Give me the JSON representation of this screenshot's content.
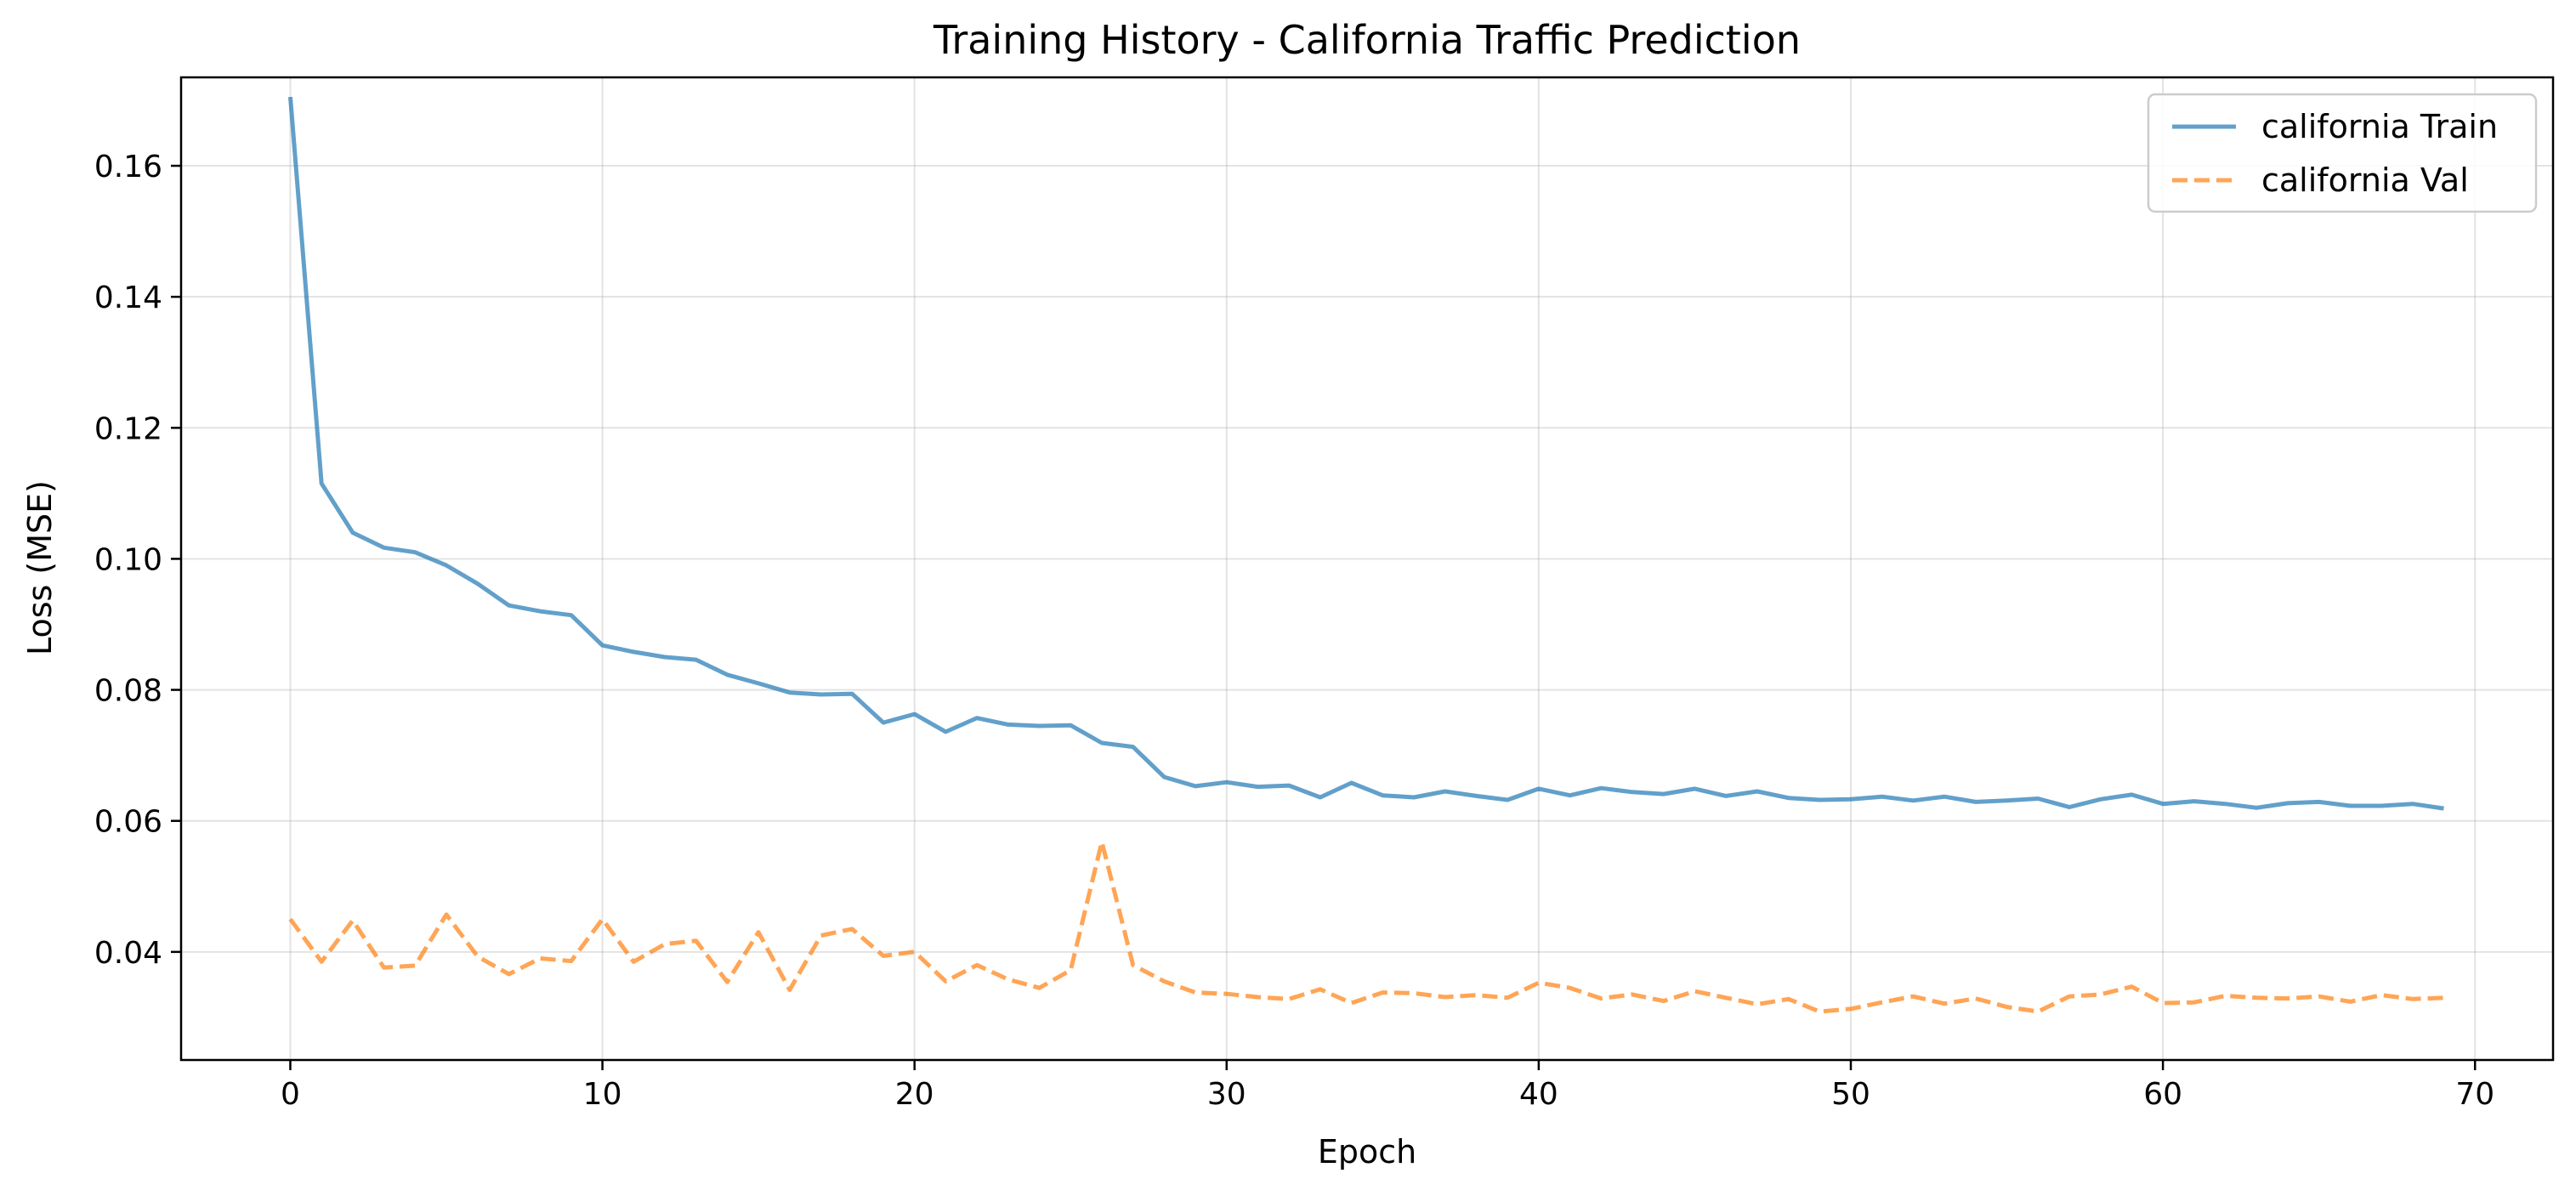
{
  "chart_data": {
    "type": "line",
    "title": "Training History - California Traffic Prediction",
    "xlabel": "Epoch",
    "ylabel": "Loss (MSE)",
    "xlim": [
      -3.5,
      72.5
    ],
    "ylim": [
      0.0235,
      0.1735
    ],
    "xticks": [
      0,
      10,
      20,
      30,
      40,
      50,
      60,
      70
    ],
    "yticks": [
      0.04,
      0.06,
      0.08,
      0.1,
      0.12,
      0.14,
      0.16
    ],
    "ytick_labels": [
      "0.04",
      "0.06",
      "0.08",
      "0.10",
      "0.12",
      "0.14",
      "0.16"
    ],
    "grid": true,
    "legend_position": "top-right",
    "x": [
      0,
      1,
      2,
      3,
      4,
      5,
      6,
      7,
      8,
      9,
      10,
      11,
      12,
      13,
      14,
      15,
      16,
      17,
      18,
      19,
      20,
      21,
      22,
      23,
      24,
      25,
      26,
      27,
      28,
      29,
      30,
      31,
      32,
      33,
      34,
      35,
      36,
      37,
      38,
      39,
      40,
      41,
      42,
      43,
      44,
      45,
      46,
      47,
      48,
      49,
      50,
      51,
      52,
      53,
      54,
      55,
      56,
      57,
      58,
      59,
      60,
      61,
      62,
      63,
      64,
      65,
      66,
      67,
      68,
      69
    ],
    "series": [
      {
        "name": "california Train",
        "color": "#1f77b4",
        "style": "solid",
        "values": [
          0.1705,
          0.1115,
          0.104,
          0.1017,
          0.101,
          0.099,
          0.0962,
          0.0929,
          0.092,
          0.0914,
          0.0868,
          0.0858,
          0.085,
          0.0846,
          0.0823,
          0.081,
          0.0796,
          0.0793,
          0.0794,
          0.075,
          0.0763,
          0.0736,
          0.0757,
          0.0747,
          0.0745,
          0.0746,
          0.0719,
          0.0713,
          0.0667,
          0.0653,
          0.0659,
          0.0652,
          0.0654,
          0.0636,
          0.0658,
          0.0639,
          0.0636,
          0.0645,
          0.0638,
          0.0632,
          0.0649,
          0.0639,
          0.065,
          0.0644,
          0.0641,
          0.0649,
          0.0638,
          0.0645,
          0.0635,
          0.0632,
          0.0633,
          0.0637,
          0.0631,
          0.0637,
          0.0629,
          0.0631,
          0.0634,
          0.0621,
          0.0633,
          0.064,
          0.0626,
          0.063,
          0.0626,
          0.062,
          0.0627,
          0.0629,
          0.0623,
          0.0623,
          0.0626,
          0.0619
        ]
      },
      {
        "name": "california Val",
        "color": "#ff7f0e",
        "style": "dashed",
        "values": [
          0.045,
          0.0385,
          0.0448,
          0.0376,
          0.0379,
          0.0457,
          0.0393,
          0.0366,
          0.039,
          0.0386,
          0.045,
          0.0385,
          0.0412,
          0.0417,
          0.0354,
          0.043,
          0.0342,
          0.0425,
          0.0435,
          0.0394,
          0.04,
          0.0355,
          0.038,
          0.0358,
          0.0345,
          0.0372,
          0.0568,
          0.038,
          0.0355,
          0.0338,
          0.0336,
          0.0331,
          0.0328,
          0.0343,
          0.0322,
          0.0338,
          0.0337,
          0.0331,
          0.0334,
          0.033,
          0.0353,
          0.0345,
          0.0329,
          0.0335,
          0.0325,
          0.034,
          0.033,
          0.032,
          0.0328,
          0.0309,
          0.0313,
          0.0323,
          0.0332,
          0.0321,
          0.0329,
          0.0316,
          0.0309,
          0.0332,
          0.0335,
          0.0347,
          0.0322,
          0.0323,
          0.0333,
          0.033,
          0.0329,
          0.0332,
          0.0324,
          0.0334,
          0.0328,
          0.033
        ]
      }
    ]
  }
}
